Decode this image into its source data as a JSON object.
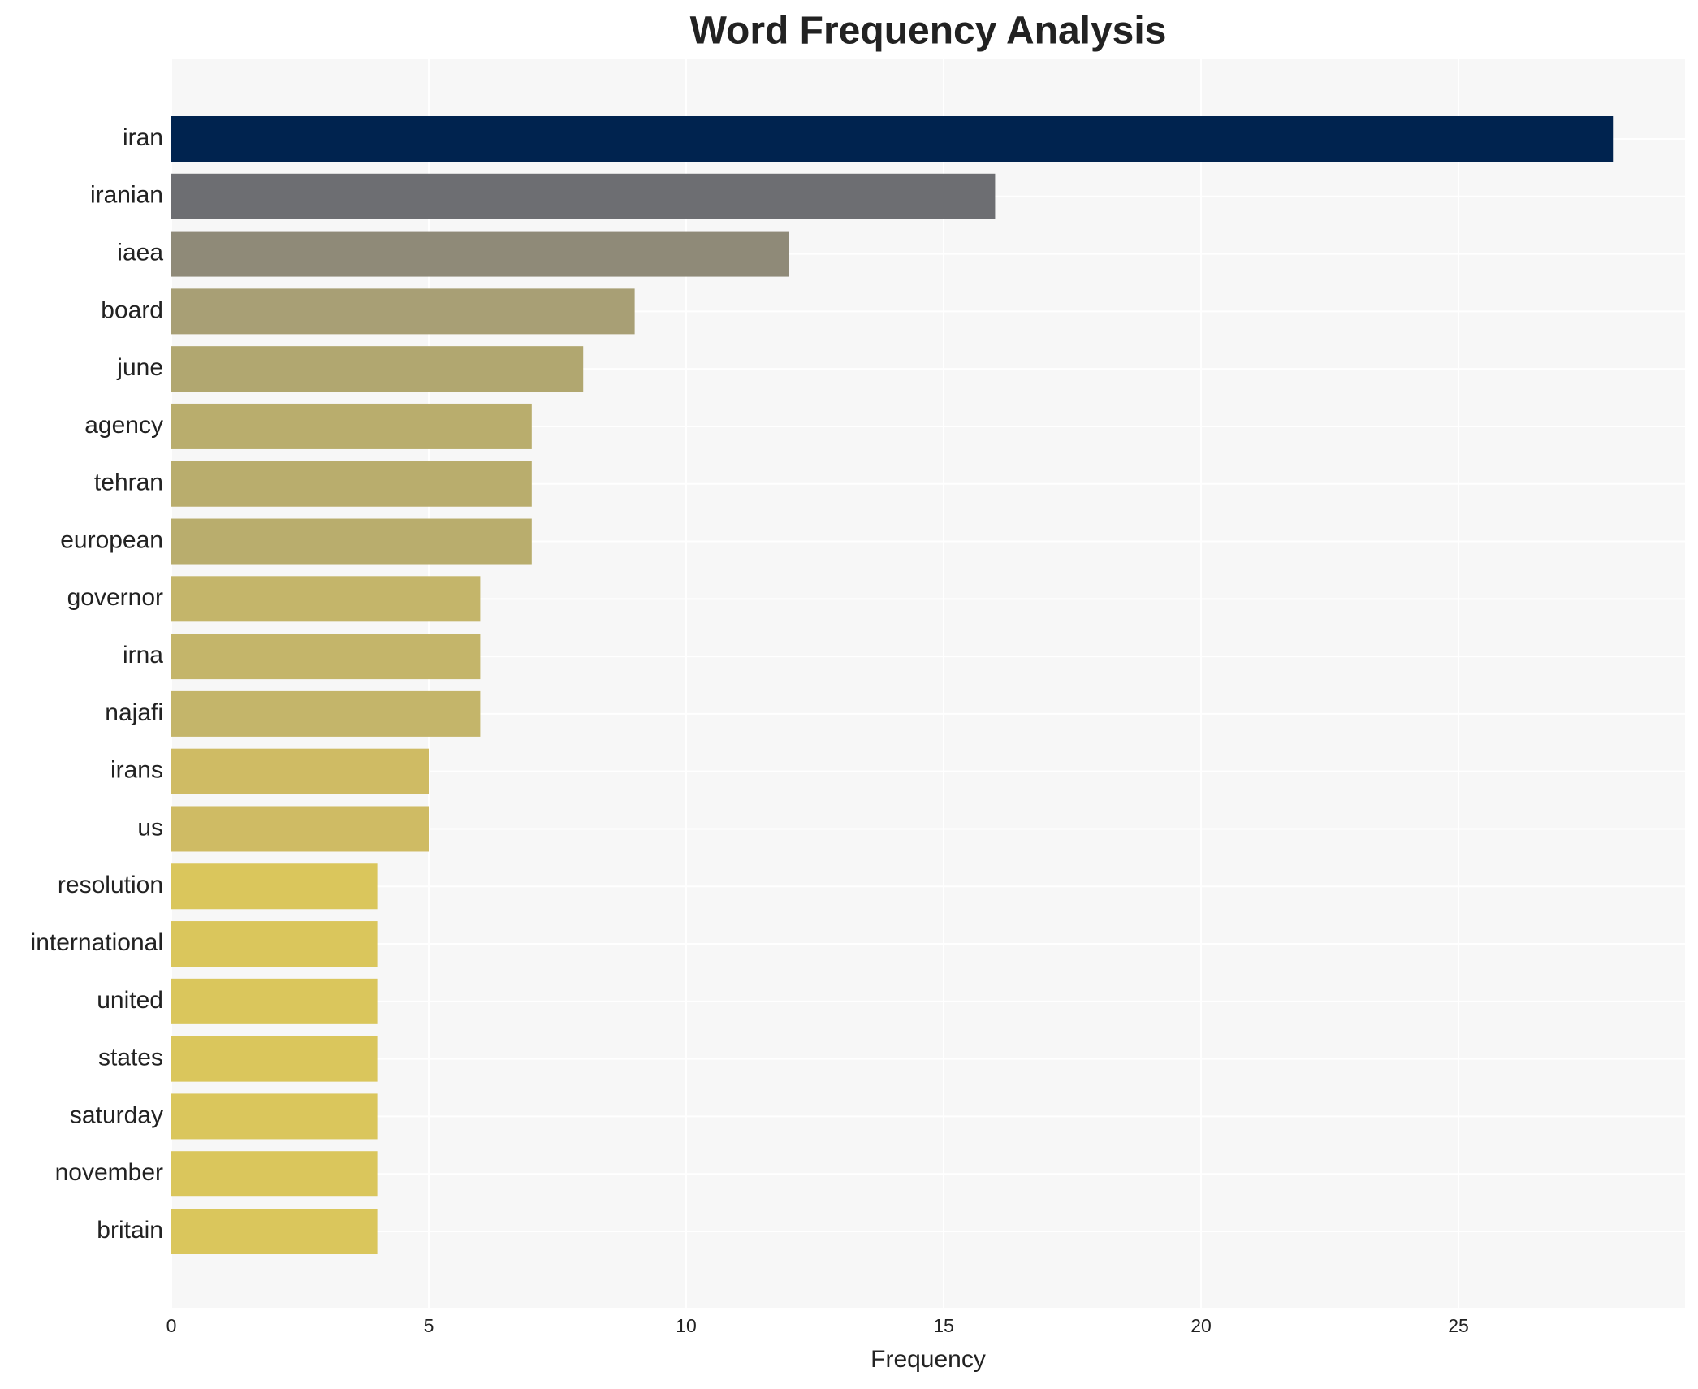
{
  "chart_data": {
    "type": "bar",
    "orientation": "horizontal",
    "title": "Word Frequency Analysis",
    "x_label": "Frequency",
    "categories": [
      "iran",
      "iranian",
      "iaea",
      "board",
      "june",
      "agency",
      "tehran",
      "european",
      "governor",
      "irna",
      "najafi",
      "irans",
      "us",
      "resolution",
      "international",
      "united",
      "states",
      "saturday",
      "november",
      "britain"
    ],
    "values": [
      28,
      16,
      12,
      9,
      8,
      7,
      7,
      7,
      6,
      6,
      6,
      5,
      5,
      4,
      4,
      4,
      4,
      4,
      4,
      4
    ],
    "colors": [
      "#00234f",
      "#6d6e72",
      "#8f8a78",
      "#a89f75",
      "#b1a770",
      "#b9ad6d",
      "#b9ad6d",
      "#b9ad6d",
      "#c4b56a",
      "#c4b56a",
      "#c4b56a",
      "#cfbb64",
      "#cfbb64",
      "#dac65c",
      "#dac65c",
      "#dac65c",
      "#dac65c",
      "#dac65c",
      "#dac65c",
      "#dac65c"
    ],
    "xlim": [
      0,
      29.4
    ],
    "xticks": [
      0,
      5,
      10,
      15,
      20,
      25
    ],
    "grid": true
  }
}
